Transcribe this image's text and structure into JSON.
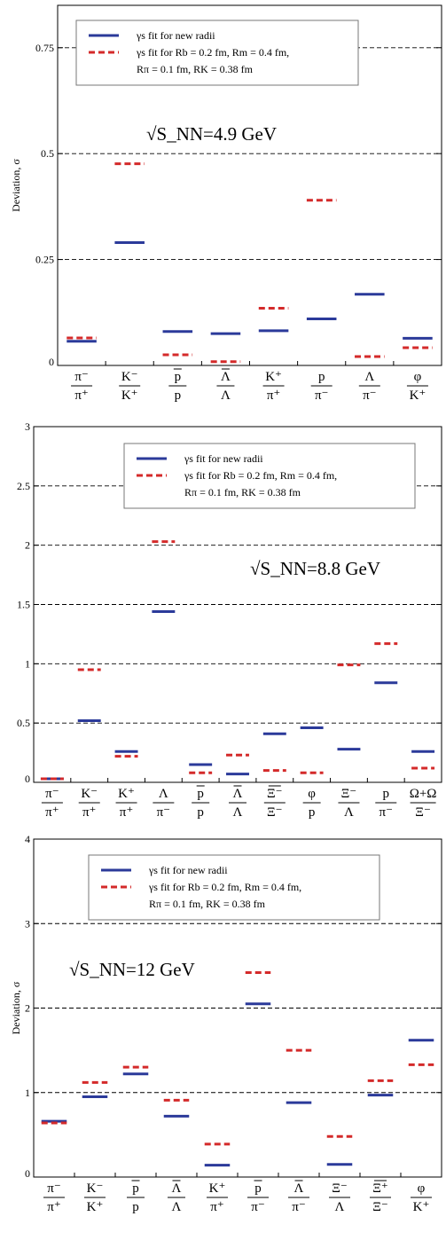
{
  "chart_data": [
    {
      "type": "bar",
      "annotation": "√S_NN=4.9 GeV",
      "ylabel": "Deviation, σ",
      "ylim": [
        0,
        0.85
      ],
      "yticks": [
        "0",
        "0.25",
        "0.5",
        "0.75"
      ],
      "ytick_values": [
        0,
        0.25,
        0.5,
        0.75
      ],
      "grid_y": [
        0.25,
        0.5,
        0.75
      ],
      "legend": [
        "γs  fit for new radii",
        "γs  fit for Rb = 0.2 fm, Rm = 0.4 fm,",
        "Rπ = 0.1 fm,  RK = 0.38 fm"
      ],
      "legend_position": "top-center",
      "categories": [
        {
          "num": "π⁻",
          "den": "π⁺",
          "num_bar": false,
          "den_bar": false
        },
        {
          "num": "K⁻",
          "den": "K⁺",
          "num_bar": false,
          "den_bar": false
        },
        {
          "num": "p",
          "den": "p",
          "num_bar": true,
          "den_bar": false
        },
        {
          "num": "Λ",
          "den": "Λ",
          "num_bar": true,
          "den_bar": false
        },
        {
          "num": "K⁺",
          "den": "π⁺",
          "num_bar": false,
          "den_bar": false
        },
        {
          "num": "p",
          "den": "π⁻",
          "num_bar": false,
          "den_bar": false
        },
        {
          "num": "Λ",
          "den": "π⁻",
          "num_bar": false,
          "den_bar": false
        },
        {
          "num": "φ",
          "den": "K⁺",
          "num_bar": false,
          "den_bar": false
        }
      ],
      "series": [
        {
          "name": "γs  fit for new radii",
          "color": "#2b3a9a",
          "style": "solid",
          "values": [
            0.057,
            0.29,
            0.08,
            0.075,
            0.082,
            0.11,
            0.168,
            0.064
          ]
        },
        {
          "name": "γs  fit for Rb = 0.2 fm, Rm = 0.4 fm, Rπ = 0.1 fm,  RK = 0.38 fm",
          "color": "#d42a2a",
          "style": "dashed",
          "values": [
            0.065,
            0.476,
            0.025,
            0.009,
            0.135,
            0.39,
            0.021,
            0.042
          ]
        }
      ]
    },
    {
      "type": "bar",
      "annotation": "√S_NN=8.8 GeV",
      "ylabel": "",
      "ylim": [
        0,
        3
      ],
      "yticks": [
        "0",
        "0.5",
        "1",
        "1.5",
        "2",
        "2.5",
        "3"
      ],
      "ytick_values": [
        0,
        0.5,
        1,
        1.5,
        2,
        2.5,
        3
      ],
      "grid_y": [
        0.5,
        1,
        1.5,
        2,
        2.5
      ],
      "legend": [
        "γs  fit for new radii",
        "γs  fit for Rb = 0.2 fm, Rm = 0.4 fm,",
        "Rπ = 0.1 fm,  RK = 0.38 fm"
      ],
      "legend_position": "top-center",
      "categories": [
        {
          "num": "π⁻",
          "den": "π⁺",
          "num_bar": false,
          "den_bar": false
        },
        {
          "num": "K⁻",
          "den": "π⁺",
          "num_bar": false,
          "den_bar": false
        },
        {
          "num": "K⁺",
          "den": "π⁺",
          "num_bar": false,
          "den_bar": false
        },
        {
          "num": "Λ",
          "den": "π⁻",
          "num_bar": false,
          "den_bar": false
        },
        {
          "num": "p",
          "den": "p",
          "num_bar": true,
          "den_bar": false
        },
        {
          "num": "Λ",
          "den": "Λ",
          "num_bar": true,
          "den_bar": false
        },
        {
          "num": "Ξ⁻",
          "den": "Ξ⁻",
          "num_bar": true,
          "den_bar": false
        },
        {
          "num": "φ",
          "den": "p",
          "num_bar": false,
          "den_bar": false
        },
        {
          "num": "Ξ⁻",
          "den": "Λ",
          "num_bar": false,
          "den_bar": false
        },
        {
          "num": "p",
          "den": "π⁻",
          "num_bar": false,
          "den_bar": false
        },
        {
          "num": "Ω+Ω",
          "den": "Ξ⁻",
          "num_bar": false,
          "den_bar": false
        }
      ],
      "series": [
        {
          "name": "γs  fit for new radii",
          "color": "#2b3a9a",
          "style": "solid",
          "values": [
            0.03,
            0.52,
            0.26,
            1.44,
            0.15,
            0.07,
            0.41,
            0.46,
            0.28,
            0.84,
            0.26
          ]
        },
        {
          "name": "γs  fit for Rb = 0.2 fm, Rm = 0.4 fm, Rπ = 0.1 fm,  RK = 0.38 fm",
          "color": "#d42a2a",
          "style": "dashed",
          "values": [
            0.03,
            0.95,
            0.22,
            2.03,
            0.08,
            0.23,
            0.1,
            0.08,
            0.99,
            1.17,
            0.12
          ]
        }
      ]
    },
    {
      "type": "bar",
      "annotation": "√S_NN=12 GeV",
      "ylabel": "Deviation, σ",
      "ylim": [
        0,
        4
      ],
      "yticks": [
        "0",
        "1",
        "2",
        "3",
        "4"
      ],
      "ytick_values": [
        0,
        1,
        2,
        3,
        4
      ],
      "grid_y": [
        1,
        2,
        3
      ],
      "legend": [
        "γs  fit for new radii",
        "γs  fit for Rb = 0.2 fm, Rm = 0.4 fm,",
        "Rπ = 0.1 fm,  RK = 0.38 fm"
      ],
      "legend_position": "top-center",
      "categories": [
        {
          "num": "π⁻",
          "den": "π⁺",
          "num_bar": false,
          "den_bar": false
        },
        {
          "num": "K⁻",
          "den": "K⁺",
          "num_bar": false,
          "den_bar": false
        },
        {
          "num": "p",
          "den": "p",
          "num_bar": true,
          "den_bar": false
        },
        {
          "num": "Λ",
          "den": "Λ",
          "num_bar": true,
          "den_bar": false
        },
        {
          "num": "K⁺",
          "den": "π⁺",
          "num_bar": false,
          "den_bar": false
        },
        {
          "num": "p",
          "den": "π⁻",
          "num_bar": true,
          "den_bar": false
        },
        {
          "num": "Λ",
          "den": "π⁻",
          "num_bar": true,
          "den_bar": false
        },
        {
          "num": "Ξ⁻",
          "den": "Λ",
          "num_bar": false,
          "den_bar": false
        },
        {
          "num": "Ξ⁺",
          "den": "Ξ⁻",
          "num_bar": true,
          "den_bar": false
        },
        {
          "num": "φ",
          "den": "K⁺",
          "num_bar": false,
          "den_bar": false
        }
      ],
      "series": [
        {
          "name": "γs  fit for new radii",
          "color": "#2b3a9a",
          "style": "solid",
          "values": [
            0.66,
            0.95,
            1.22,
            0.72,
            0.14,
            2.05,
            0.88,
            0.15,
            0.97,
            1.62
          ]
        },
        {
          "name": "γs  fit for Rb = 0.2 fm, Rm = 0.4 fm, Rπ = 0.1 fm,  RK = 0.38 fm",
          "color": "#d42a2a",
          "style": "dashed",
          "values": [
            0.64,
            1.12,
            1.3,
            0.91,
            0.39,
            2.42,
            1.5,
            0.48,
            1.14,
            1.33
          ]
        }
      ]
    }
  ]
}
